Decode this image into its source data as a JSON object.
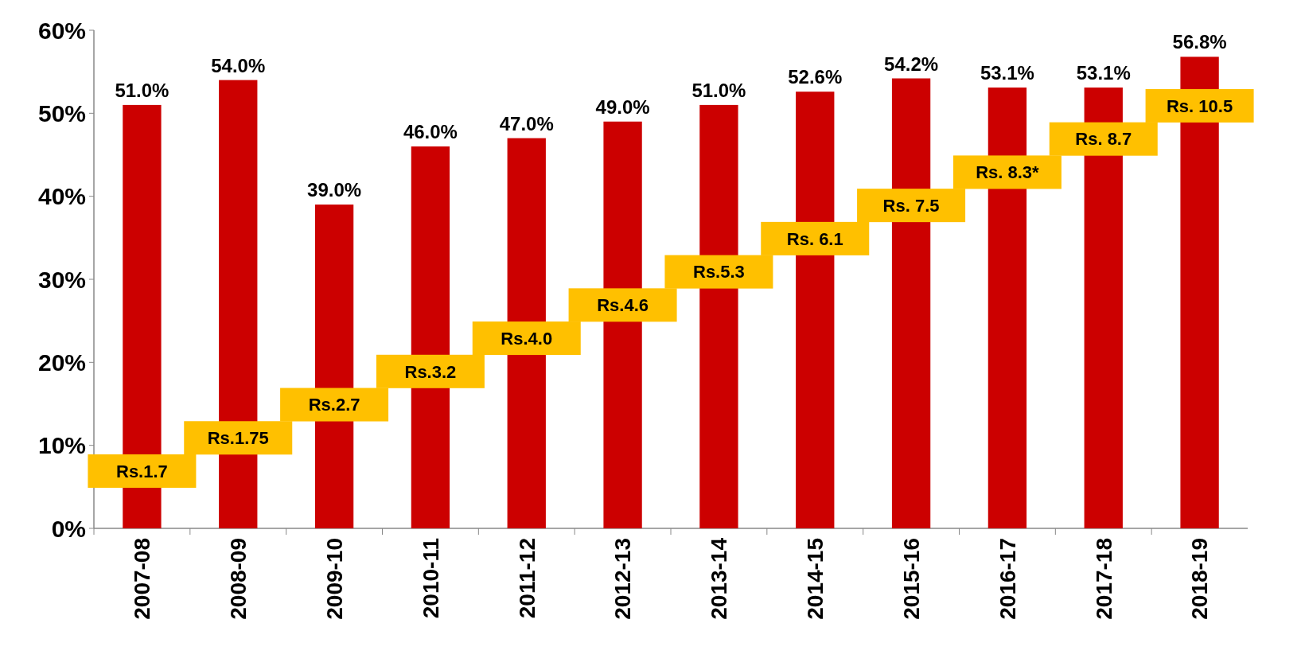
{
  "chart_data": {
    "type": "bar",
    "categories": [
      "2007-08",
      "2008-09",
      "2009-10",
      "2010-11",
      "2011-12",
      "2012-13",
      "2013-14",
      "2014-15",
      "2015-16",
      "2016-17",
      "2017-18",
      "2018-19"
    ],
    "values": [
      51.0,
      54.0,
      39.0,
      46.0,
      47.0,
      49.0,
      51.0,
      52.6,
      54.2,
      53.1,
      53.1,
      56.8
    ],
    "color": "#cc0000",
    "value_labels": [
      "51.0%",
      "54.0%",
      "39.0%",
      "46.0%",
      "47.0%",
      "49.0%",
      "51.0%",
      "52.6%",
      "54.2%",
      "53.1%",
      "53.1%",
      "56.8%"
    ],
    "ylim": [
      0,
      60
    ],
    "yticks": [
      {
        "value": 0,
        "label": "0%"
      },
      {
        "value": 10,
        "label": "10%"
      },
      {
        "value": 20,
        "label": "20%"
      },
      {
        "value": 30,
        "label": "30%"
      },
      {
        "value": 40,
        "label": "40%"
      },
      {
        "value": 50,
        "label": "50%"
      },
      {
        "value": 60,
        "label": "60%"
      }
    ],
    "annotations": [
      "Rs.1.7",
      "Rs.1.75",
      "Rs.2.7",
      "Rs.3.2",
      "Rs.4.0",
      "Rs.4.6",
      "Rs.5.3",
      "Rs. 6.1",
      "Rs. 7.5",
      "Rs. 8.3*",
      "Rs. 8.7",
      "Rs. 10.5"
    ],
    "grid": false
  }
}
